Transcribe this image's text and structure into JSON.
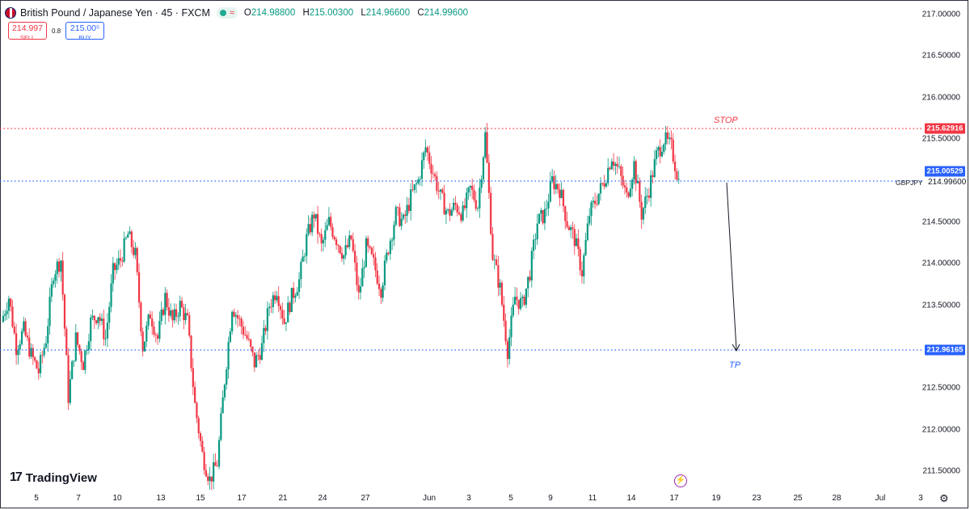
{
  "header": {
    "symbol_text": "British Pound / Japanese Yen · 45 · FXCM",
    "flag_icon": "gbp-jpy-flag-icon",
    "wave_glyph": "≈",
    "ohlc": {
      "o_key": "O",
      "o_val": "214.98800",
      "h_key": "H",
      "h_val": "215.00300",
      "l_key": "L",
      "l_val": "214.96600",
      "c_key": "C",
      "c_val": "214.99600"
    }
  },
  "trade": {
    "sell_price": "214.997",
    "sell_label": "SELL",
    "spread": "0.8",
    "buy_price": "215.00⁵",
    "buy_label": "BUY"
  },
  "price_scale": {
    "labels": [
      "217.00000",
      "216.50000",
      "216.00000",
      "215.50000",
      "214.50000",
      "214.00000",
      "213.50000",
      "212.50000",
      "212.00000",
      "211.50000"
    ]
  },
  "time_scale": {
    "labels": [
      "5",
      "7",
      "10",
      "13",
      "15",
      "17",
      "21",
      "24",
      "27",
      "Jun",
      "3",
      "5",
      "9",
      "11",
      "14",
      "17",
      "19",
      "23",
      "25",
      "28",
      "Jul",
      "3"
    ]
  },
  "levels": {
    "stop_price": "215.62916",
    "stop_label": "STOP",
    "entry_price": "215.00529",
    "tp_price": "212.96165",
    "tp_label": "TP",
    "symbol_short": "GBPJPY",
    "last_price": "214.99600"
  },
  "colors": {
    "up": "#089981",
    "down": "#f23645",
    "stop_line": "#f23645",
    "entry_line": "#2962ff",
    "tp_line": "#2962ff"
  },
  "chart_data": {
    "type": "candlestick",
    "symbol": "GBPJPY",
    "timeframe": "45",
    "ylim": [
      211.3,
      217.1
    ],
    "x_ticks": [
      "5",
      "7",
      "10",
      "13",
      "15",
      "17",
      "21",
      "24",
      "27",
      "Jun",
      "3",
      "5",
      "9",
      "11",
      "14",
      "17",
      "19",
      "23",
      "25",
      "28",
      "Jul",
      "3"
    ],
    "y_ticks": [
      217.0,
      216.5,
      216.0,
      215.5,
      214.5,
      214.0,
      213.5,
      212.5,
      212.0,
      211.5
    ],
    "close_path": [
      213.3,
      213.6,
      213.0,
      213.2,
      212.9,
      212.7,
      213.1,
      213.9,
      214.05,
      212.4,
      213.1,
      212.8,
      213.3,
      213.4,
      213.1,
      213.9,
      214.05,
      214.35,
      214.1,
      213.0,
      213.4,
      213.1,
      213.6,
      213.3,
      213.5,
      213.3,
      212.3,
      211.7,
      211.4,
      211.6,
      212.6,
      213.5,
      213.3,
      213.1,
      212.8,
      213.0,
      213.5,
      213.7,
      213.3,
      213.6,
      213.8,
      214.3,
      214.6,
      214.2,
      214.5,
      214.3,
      214.1,
      214.3,
      213.6,
      214.2,
      214.0,
      213.7,
      214.2,
      214.6,
      214.5,
      214.8,
      215.0,
      215.4,
      215.1,
      214.8,
      214.6,
      214.7,
      214.6,
      214.9,
      214.7,
      215.55,
      214.1,
      213.7,
      212.96,
      213.6,
      213.5,
      213.9,
      214.5,
      214.6,
      215.0,
      214.9,
      214.5,
      214.3,
      213.9,
      214.6,
      214.8,
      215.0,
      215.3,
      215.1,
      214.8,
      215.2,
      214.6,
      214.9,
      215.3,
      215.5,
      215.4,
      214.996
    ],
    "horizontal_levels": [
      {
        "price": 215.62916,
        "style": "dotted",
        "color": "#f23645",
        "label": "STOP"
      },
      {
        "price": 215.00529,
        "style": "dotted",
        "color": "#2962ff"
      },
      {
        "price": 212.96165,
        "style": "dotted",
        "color": "#2962ff",
        "label": "TP"
      }
    ],
    "annotation_arrow": {
      "from_price": 214.99,
      "to_price": 212.96165
    }
  }
}
